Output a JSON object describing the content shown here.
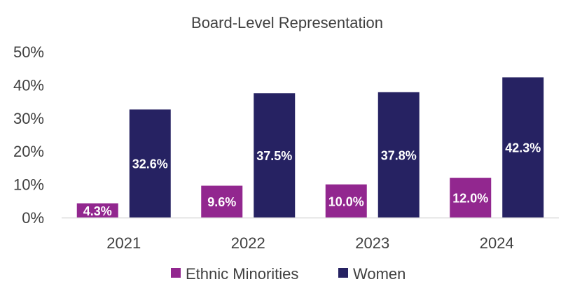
{
  "chart_data": {
    "type": "bar",
    "title": "Board-Level Representation",
    "categories": [
      "2021",
      "2022",
      "2023",
      "2024"
    ],
    "series": [
      {
        "name": "Ethnic Minorities",
        "color": "#92278F",
        "values": [
          4.3,
          9.6,
          10.0,
          12.0
        ],
        "labels": [
          "4.3%",
          "9.6%",
          "10.0%",
          "12.0%"
        ]
      },
      {
        "name": "Women",
        "color": "#262262",
        "values": [
          32.6,
          37.5,
          37.8,
          42.3
        ],
        "labels": [
          "32.6%",
          "37.5%",
          "37.8%",
          "42.3%"
        ]
      }
    ],
    "ylim": [
      0,
      50
    ],
    "yticks": [
      0,
      10,
      20,
      30,
      40,
      50
    ],
    "ytick_labels": [
      "0%",
      "10%",
      "20%",
      "30%",
      "40%",
      "50%"
    ],
    "xlabel": "",
    "ylabel": "",
    "grid": false,
    "legend": "bottom",
    "axis_color": "#D9D9D9"
  }
}
